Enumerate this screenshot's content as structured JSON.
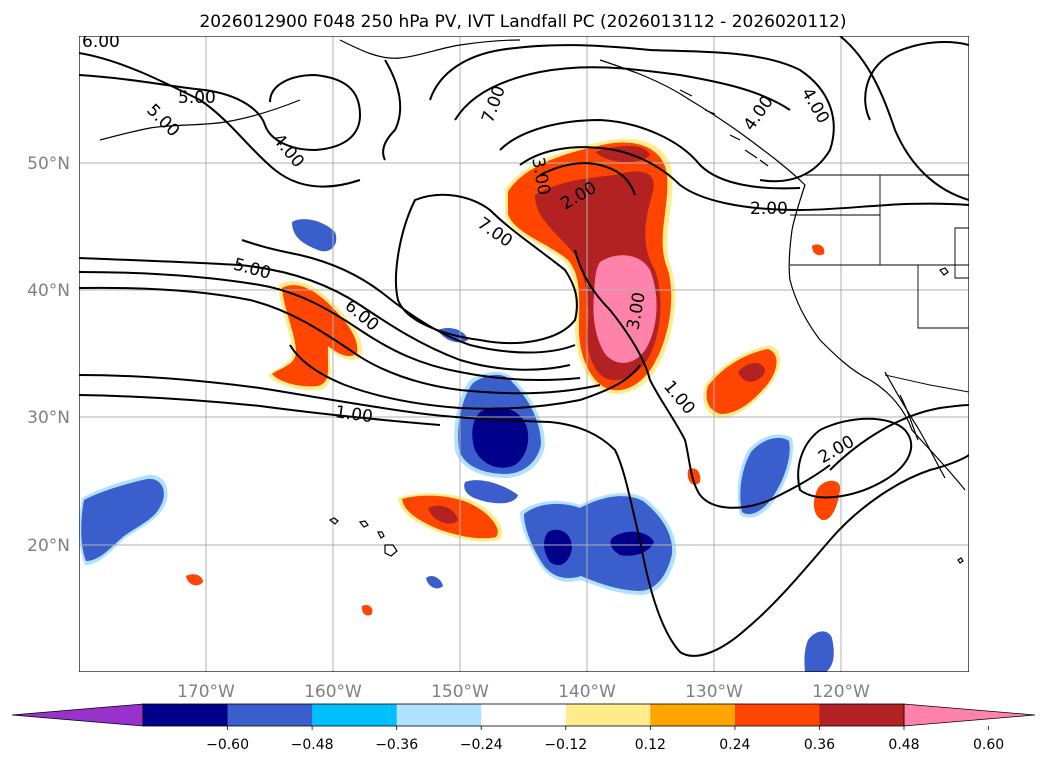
{
  "title": "2026012900 F048 250 hPa PV, IVT Landfall PC (2026013112 - 2026020112)",
  "map": {
    "lon_range": [
      -180,
      -110
    ],
    "lat_range": [
      10,
      60
    ],
    "lon_ticks": [
      "170°W",
      "160°W",
      "150°W",
      "140°W",
      "130°W",
      "120°W"
    ],
    "lat_ticks": [
      "50°N",
      "40°N",
      "30°N",
      "20°N"
    ],
    "grid": true
  },
  "colorbar": {
    "ticks": [
      "−0.60",
      "−0.48",
      "−0.36",
      "−0.24",
      "−0.12",
      "0.12",
      "0.24",
      "0.36",
      "0.48",
      "0.60"
    ],
    "colors": [
      "#9932cc",
      "#00008b",
      "#3a5fcd",
      "#00bfff",
      "#b0e2ff",
      "#ffffff",
      "#ffec8b",
      "#ffa500",
      "#ff4500",
      "#b22222",
      "#ff82ab"
    ],
    "extend": "both"
  },
  "contour_labels": [
    "6.00",
    "5.00",
    "5.00",
    "4.00",
    "7.00",
    "3.00",
    "2.00",
    "7.00",
    "5.00",
    "6.00",
    "3.00",
    "1.00",
    "1.00",
    "2.00",
    "2.00",
    "4.00",
    "4.00"
  ]
}
